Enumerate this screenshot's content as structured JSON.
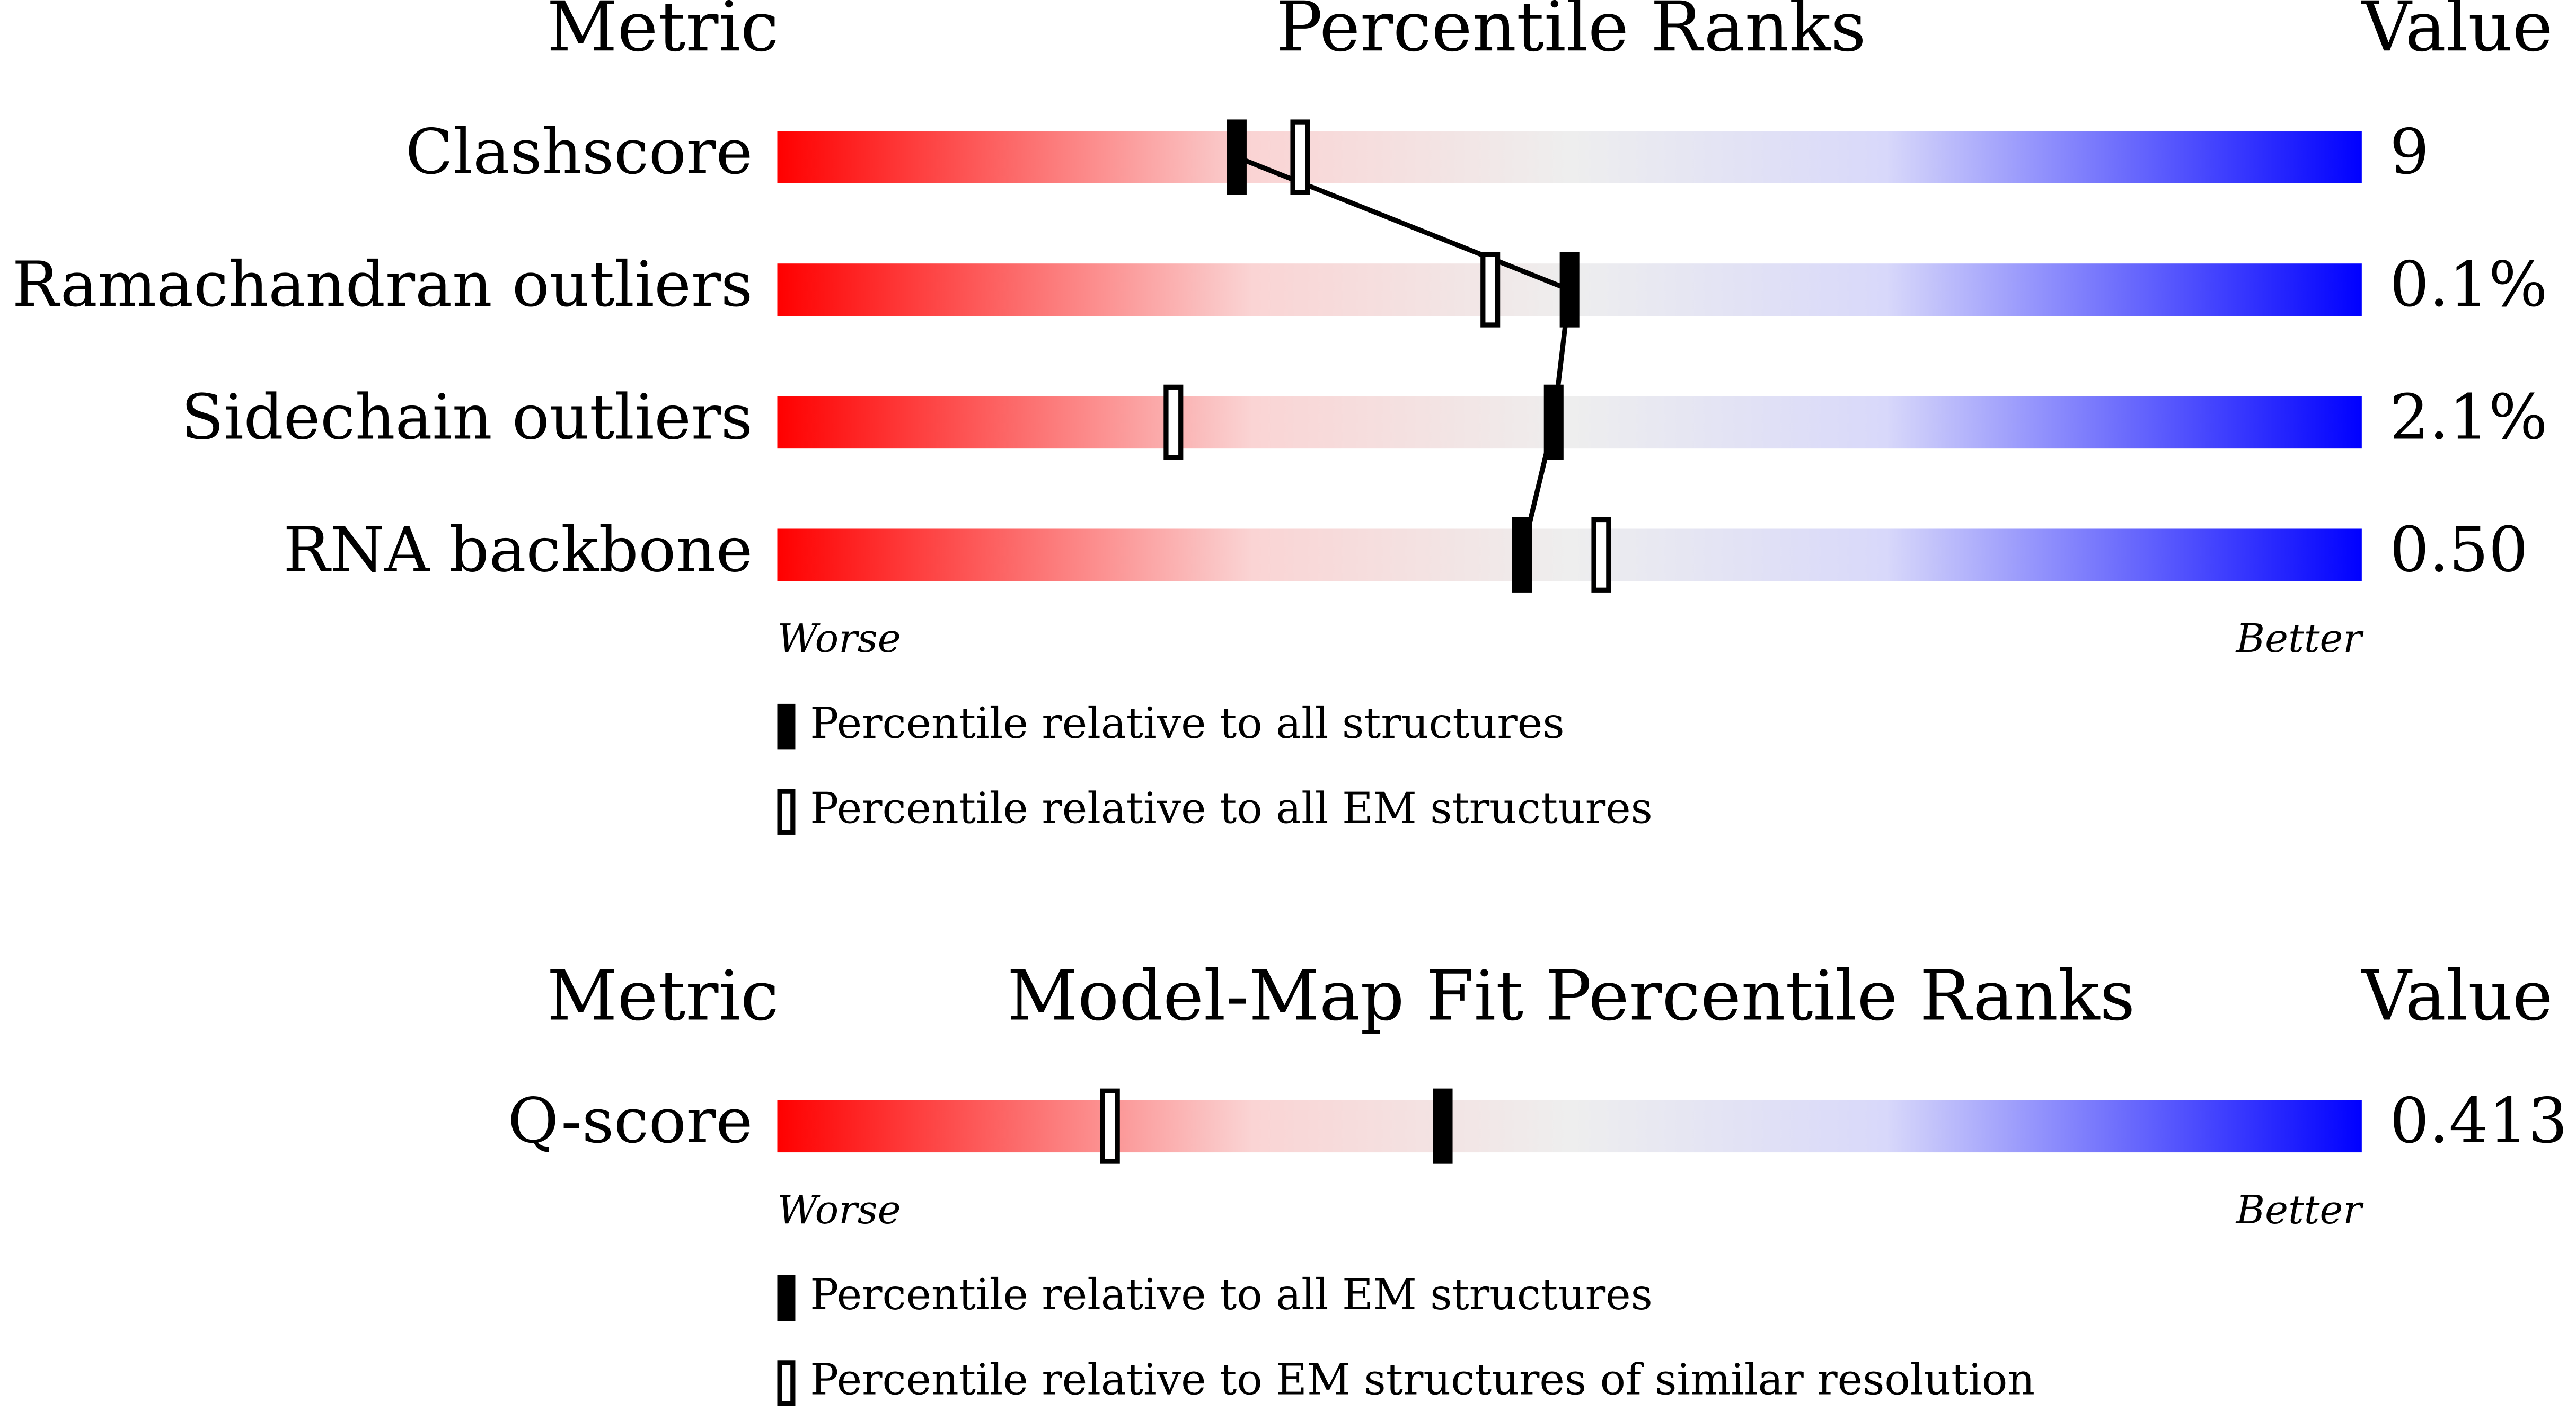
{
  "chart_data": [
    {
      "type": "percentile",
      "metric_header": "Metric",
      "title": "Percentile Ranks",
      "value_header": "Value",
      "categories": [
        "Clashscore",
        "Ramachandran outliers",
        "Sidechain outliers",
        "RNA backbone"
      ],
      "printed_values": [
        "9",
        "0.1%",
        "2.1%",
        "0.50"
      ],
      "xlim": [
        0,
        100
      ],
      "worse_label": "Worse",
      "better_label": "Better",
      "series": [
        {
          "name": "Percentile relative to all structures",
          "marker": "filled",
          "color": "#000000",
          "values": [
            29,
            50,
            49,
            47
          ]
        },
        {
          "name": "Percentile relative to all EM structures",
          "marker": "open",
          "color": "#000000",
          "values": [
            33,
            45,
            25,
            52
          ]
        }
      ]
    },
    {
      "type": "percentile",
      "metric_header": "Metric",
      "title": "Model-Map Fit Percentile Ranks",
      "value_header": "Value",
      "categories": [
        "Q-score"
      ],
      "printed_values": [
        "0.413"
      ],
      "xlim": [
        0,
        100
      ],
      "worse_label": "Worse",
      "better_label": "Better",
      "series": [
        {
          "name": "Percentile relative to all EM structures",
          "marker": "filled",
          "color": "#000000",
          "values": [
            42
          ]
        },
        {
          "name": "Percentile relative to EM structures of similar resolution",
          "marker": "open",
          "color": "#000000",
          "values": [
            21
          ]
        }
      ]
    }
  ]
}
